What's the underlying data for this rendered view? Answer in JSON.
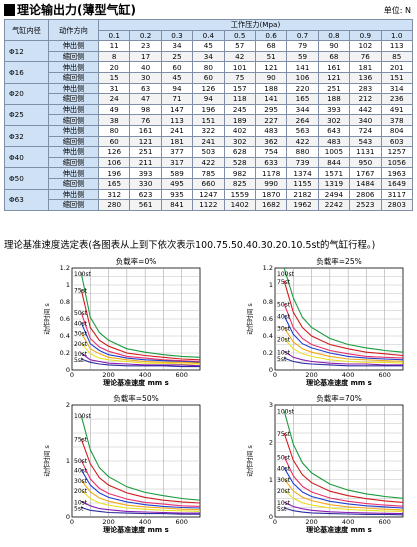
{
  "header": {
    "title": "理论输出力(薄型气缸)",
    "unit": "单位: N"
  },
  "force_table": {
    "col_bore": "气缸内径",
    "col_dir": "动作方向",
    "col_pressure": "工作压力(Mpa)",
    "pressures": [
      "0.1",
      "0.2",
      "0.3",
      "0.4",
      "0.5",
      "0.6",
      "0.7",
      "0.8",
      "0.9",
      "1.0"
    ],
    "rows": [
      {
        "bore": "Φ12",
        "values": [
          [
            "伸出侧",
            "11",
            "23",
            "34",
            "45",
            "57",
            "68",
            "79",
            "90",
            "102",
            "113"
          ],
          [
            "缩回侧",
            "8",
            "17",
            "25",
            "34",
            "42",
            "51",
            "59",
            "68",
            "76",
            "85"
          ]
        ]
      },
      {
        "bore": "Φ16",
        "values": [
          [
            "伸出侧",
            "20",
            "40",
            "60",
            "80",
            "101",
            "121",
            "141",
            "161",
            "181",
            "201"
          ],
          [
            "缩回侧",
            "15",
            "30",
            "45",
            "60",
            "75",
            "90",
            "106",
            "121",
            "136",
            "151"
          ]
        ]
      },
      {
        "bore": "Φ20",
        "values": [
          [
            "伸出侧",
            "31",
            "63",
            "94",
            "126",
            "157",
            "188",
            "220",
            "251",
            "283",
            "314"
          ],
          [
            "缩回侧",
            "24",
            "47",
            "71",
            "94",
            "118",
            "141",
            "165",
            "188",
            "212",
            "236"
          ]
        ]
      },
      {
        "bore": "Φ25",
        "values": [
          [
            "伸出侧",
            "49",
            "98",
            "147",
            "196",
            "245",
            "295",
            "344",
            "393",
            "442",
            "491"
          ],
          [
            "缩回侧",
            "38",
            "76",
            "113",
            "151",
            "189",
            "227",
            "264",
            "302",
            "340",
            "378"
          ]
        ]
      },
      {
        "bore": "Φ32",
        "values": [
          [
            "伸出侧",
            "80",
            "161",
            "241",
            "322",
            "402",
            "483",
            "563",
            "643",
            "724",
            "804"
          ],
          [
            "缩回侧",
            "60",
            "121",
            "181",
            "241",
            "302",
            "362",
            "422",
            "483",
            "543",
            "603"
          ]
        ]
      },
      {
        "bore": "Φ40",
        "values": [
          [
            "伸出侧",
            "126",
            "251",
            "377",
            "503",
            "628",
            "754",
            "880",
            "1005",
            "1131",
            "1257"
          ],
          [
            "缩回侧",
            "106",
            "211",
            "317",
            "422",
            "528",
            "633",
            "739",
            "844",
            "950",
            "1056"
          ]
        ]
      },
      {
        "bore": "Φ50",
        "values": [
          [
            "伸出侧",
            "196",
            "393",
            "589",
            "785",
            "982",
            "1178",
            "1374",
            "1571",
            "1767",
            "1963"
          ],
          [
            "缩回侧",
            "165",
            "330",
            "495",
            "660",
            "825",
            "990",
            "1155",
            "1319",
            "1484",
            "1649"
          ]
        ]
      },
      {
        "bore": "Φ63",
        "values": [
          [
            "伸出侧",
            "312",
            "623",
            "935",
            "1247",
            "1559",
            "1870",
            "2182",
            "2494",
            "2806",
            "3117"
          ],
          [
            "缩回侧",
            "280",
            "561",
            "841",
            "1122",
            "1402",
            "1682",
            "1962",
            "2242",
            "2523",
            "2803"
          ]
        ]
      }
    ]
  },
  "section_title": "理论基准速度选定表(各图表从上到下依次表示100.75.50.40.30.20.10.5st的气缸行程。)",
  "chart_data": [
    {
      "type": "line",
      "title": "负载率=0%",
      "xlabel": "理论基准速度 mm s",
      "ylabel": "动作时间 s",
      "xlim": [
        0,
        700
      ],
      "ylim": [
        0,
        1.2
      ],
      "xticks": [
        "0",
        "200",
        "400",
        "600"
      ],
      "yticks": [
        "0",
        "0.2",
        "0.4",
        "0.6",
        "0.8",
        "1",
        "1.2"
      ],
      "grid": true,
      "x": [
        50,
        100,
        150,
        200,
        300,
        400,
        500,
        600,
        700
      ],
      "stroke_labels": [
        "100st",
        "75st",
        "50st",
        "40st",
        "30st",
        "20st",
        "10st",
        "5st"
      ],
      "series": [
        {
          "color": "#1a9a3c",
          "values": [
            1.15,
            0.62,
            0.44,
            0.35,
            0.25,
            0.21,
            0.18,
            0.16,
            0.15
          ]
        },
        {
          "color": "#d01c1c",
          "values": [
            0.95,
            0.5,
            0.35,
            0.28,
            0.2,
            0.17,
            0.15,
            0.13,
            0.12
          ]
        },
        {
          "color": "#e8306a",
          "values": [
            0.68,
            0.37,
            0.27,
            0.22,
            0.16,
            0.14,
            0.12,
            0.11,
            0.1
          ]
        },
        {
          "color": "#1f3fd0",
          "values": [
            0.56,
            0.31,
            0.23,
            0.18,
            0.14,
            0.12,
            0.11,
            0.1,
            0.09
          ]
        },
        {
          "color": "#f0a81a",
          "values": [
            0.44,
            0.25,
            0.19,
            0.15,
            0.12,
            0.1,
            0.09,
            0.09,
            0.08
          ]
        },
        {
          "color": "#e8e022",
          "values": [
            0.32,
            0.19,
            0.14,
            0.12,
            0.1,
            0.08,
            0.08,
            0.07,
            0.07
          ]
        },
        {
          "color": "#8a1cb0",
          "values": [
            0.2,
            0.12,
            0.1,
            0.08,
            0.07,
            0.06,
            0.06,
            0.06,
            0.05
          ]
        },
        {
          "color": "#2c2c9c",
          "values": [
            0.13,
            0.09,
            0.07,
            0.06,
            0.05,
            0.05,
            0.05,
            0.04,
            0.04
          ]
        }
      ]
    },
    {
      "type": "line",
      "title": "负载率=25%",
      "xlabel": "理论基准速度 mm s",
      "ylabel": "动作时间 s",
      "xlim": [
        0,
        700
      ],
      "ylim": [
        0,
        1.2
      ],
      "xticks": [
        "0",
        "200",
        "400",
        "600"
      ],
      "yticks": [
        "0",
        "0.2",
        "0.4",
        "0.6",
        "0.8",
        "1",
        "1.2"
      ],
      "grid": true,
      "x": [
        50,
        100,
        150,
        200,
        300,
        400,
        500,
        600,
        700
      ],
      "stroke_labels": [
        "100st",
        "75st",
        "50st",
        "40st",
        "30st",
        "20st",
        "10st",
        "5st"
      ],
      "series": [
        {
          "color": "#1a9a3c",
          "values": [
            1.2,
            0.85,
            0.62,
            0.5,
            0.37,
            0.3,
            0.26,
            0.23,
            0.21
          ]
        },
        {
          "color": "#d01c1c",
          "values": [
            1.05,
            0.68,
            0.5,
            0.4,
            0.3,
            0.25,
            0.21,
            0.19,
            0.17
          ]
        },
        {
          "color": "#e8306a",
          "values": [
            0.78,
            0.5,
            0.37,
            0.3,
            0.23,
            0.19,
            0.16,
            0.15,
            0.14
          ]
        },
        {
          "color": "#1f3fd0",
          "values": [
            0.64,
            0.42,
            0.31,
            0.26,
            0.2,
            0.16,
            0.14,
            0.13,
            0.12
          ]
        },
        {
          "color": "#f0a81a",
          "values": [
            0.5,
            0.33,
            0.25,
            0.21,
            0.16,
            0.13,
            0.12,
            0.11,
            0.1
          ]
        },
        {
          "color": "#e8e022",
          "values": [
            0.37,
            0.25,
            0.19,
            0.16,
            0.12,
            0.1,
            0.09,
            0.09,
            0.08
          ]
        },
        {
          "color": "#8a1cb0",
          "values": [
            0.22,
            0.15,
            0.12,
            0.1,
            0.08,
            0.07,
            0.07,
            0.06,
            0.06
          ]
        },
        {
          "color": "#2c2c9c",
          "values": [
            0.14,
            0.1,
            0.08,
            0.07,
            0.06,
            0.05,
            0.05,
            0.05,
            0.05
          ]
        }
      ]
    },
    {
      "type": "line",
      "title": "负载率=50%",
      "xlabel": "理论基准速度 mm s",
      "ylabel": "动作时间 s",
      "xlim": [
        0,
        700
      ],
      "ylim": [
        0,
        2
      ],
      "xticks": [
        "0",
        "200",
        "400",
        "600"
      ],
      "yticks": [
        "0",
        "1",
        "2"
      ],
      "grid": true,
      "x": [
        50,
        100,
        150,
        200,
        300,
        400,
        500,
        600,
        700
      ],
      "stroke_labels": [
        "100st",
        "75st",
        "50st",
        "40st",
        "30st",
        "20st",
        "10st",
        "5st"
      ],
      "series": [
        {
          "color": "#1a9a3c",
          "values": [
            1.82,
            1.2,
            0.88,
            0.72,
            0.54,
            0.44,
            0.38,
            0.33,
            0.3
          ]
        },
        {
          "color": "#d01c1c",
          "values": [
            1.4,
            0.95,
            0.7,
            0.57,
            0.43,
            0.35,
            0.3,
            0.27,
            0.25
          ]
        },
        {
          "color": "#e8306a",
          "values": [
            1.02,
            0.68,
            0.51,
            0.42,
            0.32,
            0.26,
            0.23,
            0.2,
            0.19
          ]
        },
        {
          "color": "#1f3fd0",
          "values": [
            0.85,
            0.57,
            0.43,
            0.35,
            0.27,
            0.22,
            0.19,
            0.17,
            0.16
          ]
        },
        {
          "color": "#f0a81a",
          "values": [
            0.66,
            0.45,
            0.34,
            0.28,
            0.21,
            0.18,
            0.16,
            0.14,
            0.13
          ]
        },
        {
          "color": "#e8e022",
          "values": [
            0.48,
            0.33,
            0.25,
            0.21,
            0.16,
            0.14,
            0.12,
            0.11,
            0.1
          ]
        },
        {
          "color": "#8a1cb0",
          "values": [
            0.28,
            0.2,
            0.15,
            0.13,
            0.1,
            0.09,
            0.08,
            0.07,
            0.07
          ]
        },
        {
          "color": "#2c2c9c",
          "values": [
            0.17,
            0.12,
            0.1,
            0.08,
            0.07,
            0.06,
            0.06,
            0.05,
            0.05
          ]
        }
      ]
    },
    {
      "type": "line",
      "title": "负载率=70%",
      "xlabel": "理论基准速度 mm s",
      "ylabel": "动作时间 s",
      "xlim": [
        0,
        700
      ],
      "ylim": [
        0,
        3
      ],
      "xticks": [
        "0",
        "200",
        "400",
        "600"
      ],
      "yticks": [
        "0",
        "1",
        "2",
        "3"
      ],
      "grid": true,
      "x": [
        50,
        100,
        150,
        200,
        300,
        400,
        500,
        600,
        700
      ],
      "stroke_labels": [
        "100st",
        "75st",
        "50st",
        "40st",
        "30st",
        "20st",
        "10st",
        "5st"
      ],
      "series": [
        {
          "color": "#1a9a3c",
          "values": [
            2.85,
            1.95,
            1.45,
            1.18,
            0.88,
            0.72,
            0.62,
            0.55,
            0.5
          ]
        },
        {
          "color": "#d01c1c",
          "values": [
            2.25,
            1.52,
            1.13,
            0.92,
            0.69,
            0.57,
            0.49,
            0.43,
            0.39
          ]
        },
        {
          "color": "#e8306a",
          "values": [
            1.62,
            1.1,
            0.82,
            0.67,
            0.51,
            0.42,
            0.36,
            0.32,
            0.29
          ]
        },
        {
          "color": "#1f3fd0",
          "values": [
            1.32,
            0.9,
            0.67,
            0.55,
            0.42,
            0.35,
            0.3,
            0.27,
            0.24
          ]
        },
        {
          "color": "#f0a81a",
          "values": [
            1.02,
            0.7,
            0.53,
            0.44,
            0.33,
            0.27,
            0.24,
            0.21,
            0.19
          ]
        },
        {
          "color": "#e8e022",
          "values": [
            0.72,
            0.5,
            0.38,
            0.32,
            0.24,
            0.2,
            0.18,
            0.16,
            0.15
          ]
        },
        {
          "color": "#8a1cb0",
          "values": [
            0.4,
            0.28,
            0.22,
            0.18,
            0.14,
            0.12,
            0.11,
            0.1,
            0.09
          ]
        },
        {
          "color": "#2c2c9c",
          "values": [
            0.24,
            0.17,
            0.13,
            0.11,
            0.09,
            0.08,
            0.07,
            0.07,
            0.06
          ]
        }
      ]
    }
  ]
}
